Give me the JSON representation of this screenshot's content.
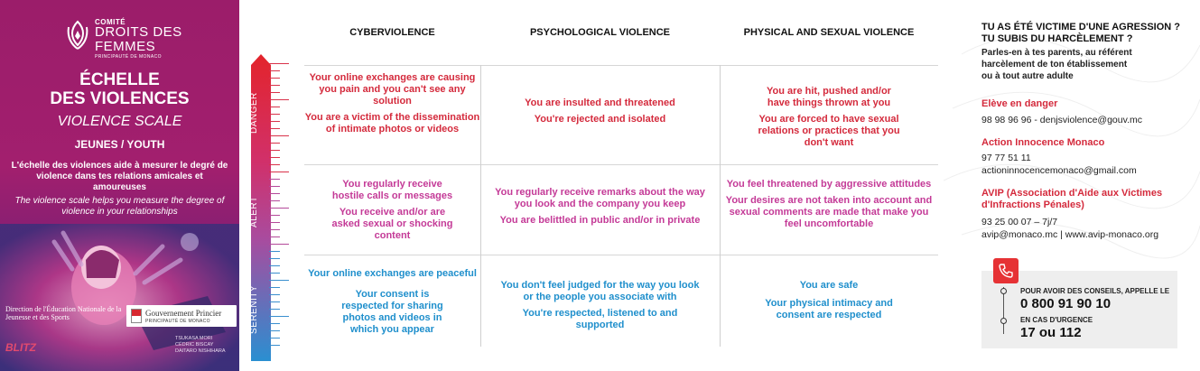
{
  "left_panel": {
    "logo": {
      "comite": "COMITÉ",
      "line1": "DROITS DES",
      "line2": "FEMMES",
      "sub": "PRINCIPAUTÉ DE MONACO"
    },
    "title_line1": "ÉCHELLE",
    "title_line2": "DES VIOLENCES",
    "subtitle": "VIOLENCE SCALE",
    "audience": "JEUNES / YOUTH",
    "desc_fr": "L'échelle des violences aide à mesurer le degré de violence dans tes relations amicales et amoureuses",
    "desc_en": "The violence scale helps you measure the degree of violence in your relationships",
    "direction": "Direction de l'Éducation Nationale de la Jeunesse et des Sports",
    "gov_name": "Gouvernement Princier",
    "gov_sub": "PRINCIPAUTÉ DE MONACO",
    "blitz": "BLITZ",
    "credit1": "TSUKASA MORI",
    "credit2": "CÉDRIC BISCAY",
    "credit3": "DAITARO NISHIHARA"
  },
  "scale": {
    "levels": [
      "DANGER",
      "ALERT",
      "SERENITY"
    ]
  },
  "columns": [
    "CYBERVIOLENCE",
    "PSYCHOLOGICAL VIOLENCE",
    "PHYSICAL AND SEXUAL VIOLENCE"
  ],
  "rows": {
    "danger": {
      "cyber": [
        "Your online exchanges are causing you pain and you can't see any solution",
        "You are a victim of the dissemination of intimate photos or videos"
      ],
      "psych": [
        "You are insulted and threatened",
        "You're rejected and isolated"
      ],
      "phys": [
        "You are hit, pushed and/or have things thrown at you",
        "You are forced to have sexual relations or practices that you don't want"
      ]
    },
    "alert": {
      "cyber": [
        "You regularly receive hostile calls or messages",
        "You receive and/or are asked sexual or shocking content"
      ],
      "psych": [
        "You regularly receive remarks about the way you look and the company you keep",
        "You are belittled in public and/or in private"
      ],
      "phys": [
        "You feel threatened by aggressive attitudes",
        "Your desires are not taken into account and sexual comments are made that make you feel uncomfortable"
      ]
    },
    "serenity": {
      "cyber": [
        "Your online exchanges are peaceful",
        "Your consent is respected for sharing photos and videos in which you appear"
      ],
      "psych": [
        "You don't feel judged for the way you look or the people you associate with",
        "You're respected, listened to and supported"
      ],
      "phys": [
        "You are safe",
        "Your physical intimacy and consent are respected"
      ]
    }
  },
  "right_panel": {
    "q1": "TU AS ÉTÉ VICTIME D'UNE AGRESSION ?",
    "q2": "TU SUBIS DU HARCÈLEMENT ?",
    "advice1": "Parles-en à tes parents, au référent",
    "advice2": "harcèlement de ton établissement",
    "advice3": "ou à tout autre adulte",
    "orgs": [
      {
        "name": "Elève en danger",
        "lines": [
          "98 98 96 96 - denjsviolence@gouv.mc"
        ]
      },
      {
        "name": "Action Innocence Monaco",
        "lines": [
          "97 77 51 11",
          "actioninnocencemonaco@gmail.com"
        ]
      },
      {
        "name": "AVIP (Association d'Aide aux Victimes d'Infractions Pénales)",
        "lines": [
          "93 25 00 07 – 7j/7",
          "avip@monaco.mc | www.avip-monaco.org"
        ]
      }
    ],
    "call": {
      "advice_label": "POUR AVOIR DES CONSEILS, APPELLE LE",
      "advice_number": "0 800 91 90 10",
      "urgent_label": "EN CAS D'URGENCE",
      "urgent_numbers": "17 ou 112"
    }
  },
  "colors": {
    "danger": "#d42a3c",
    "alert": "#c43a97",
    "serenity": "#1f8fcc",
    "panel": "#9b1d6a"
  }
}
